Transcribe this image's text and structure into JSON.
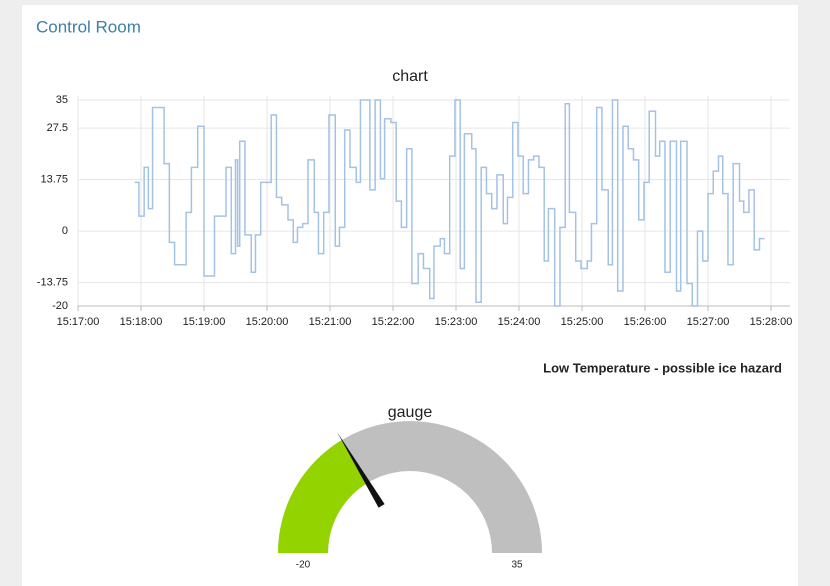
{
  "header": {
    "title": "Control Room"
  },
  "notice": "Low Temperature - possible ice hazard",
  "chart_data": [
    {
      "type": "line",
      "title": "chart",
      "step": "after",
      "color": "#a4c2e4",
      "grid": true,
      "x": [
        "15:17:54",
        "15:17:58",
        "15:18:03",
        "15:18:07",
        "15:18:11",
        "15:18:22",
        "15:18:27",
        "15:18:32",
        "15:18:43",
        "15:18:48",
        "15:18:54",
        "15:19:00",
        "15:19:10",
        "15:19:21",
        "15:19:26",
        "15:19:30",
        "15:19:32",
        "15:19:34",
        "15:19:39",
        "15:19:45",
        "15:19:49",
        "15:19:54",
        "15:20:04",
        "15:20:09",
        "15:20:14",
        "15:20:20",
        "15:20:25",
        "15:20:29",
        "15:20:34",
        "15:20:39",
        "15:20:45",
        "15:20:49",
        "15:20:54",
        "15:20:59",
        "15:21:05",
        "15:21:09",
        "15:21:14",
        "15:21:19",
        "15:21:25",
        "15:21:29",
        "15:21:38",
        "15:21:43",
        "15:21:48",
        "15:21:52",
        "15:21:58",
        "15:22:03",
        "15:22:08",
        "15:22:13",
        "15:22:18",
        "15:22:24",
        "15:22:29",
        "15:22:35",
        "15:22:39",
        "15:22:45",
        "15:22:49",
        "15:22:54",
        "15:22:59",
        "15:23:04",
        "15:23:08",
        "15:23:15",
        "15:23:19",
        "15:23:24",
        "15:23:29",
        "15:23:34",
        "15:23:39",
        "15:23:45",
        "15:23:49",
        "15:23:54",
        "15:23:59",
        "15:24:04",
        "15:24:09",
        "15:24:14",
        "15:24:19",
        "15:24:24",
        "15:24:28",
        "15:24:34",
        "15:24:39",
        "15:24:44",
        "15:24:48",
        "15:24:54",
        "15:24:59",
        "15:25:05",
        "15:25:09",
        "15:25:14",
        "15:25:19",
        "15:25:25",
        "15:25:29",
        "15:25:34",
        "15:25:39",
        "15:25:44",
        "15:25:49",
        "15:25:54",
        "15:25:59",
        "15:26:04",
        "15:26:10",
        "15:26:14",
        "15:26:19",
        "15:26:24",
        "15:26:30",
        "15:26:34",
        "15:26:40",
        "15:26:45",
        "15:26:50",
        "15:26:55",
        "15:27:00",
        "15:27:05",
        "15:27:10",
        "15:27:14",
        "15:27:19",
        "15:27:24",
        "15:27:30",
        "15:27:34",
        "15:27:39",
        "15:27:44",
        "15:27:49"
      ],
      "values": [
        13,
        4,
        17,
        6,
        33,
        18,
        -3,
        -9,
        5,
        17,
        28,
        -12,
        4,
        17,
        -6,
        19,
        -4,
        24,
        -1,
        -11,
        -1,
        13,
        31,
        9,
        7,
        3,
        -3,
        1,
        2,
        19,
        5,
        -6,
        5,
        31,
        -4,
        1,
        27,
        17,
        13,
        35,
        11,
        35,
        14,
        30,
        29,
        8,
        1,
        22,
        -14,
        -6,
        -10,
        -18,
        -4,
        -2,
        -6,
        20,
        35,
        -10,
        26,
        22,
        -19,
        17,
        10,
        6,
        15,
        2,
        9,
        29,
        20,
        10,
        19,
        20,
        17,
        -8,
        6,
        -20,
        1,
        34,
        5,
        -8,
        -10,
        -8,
        2,
        33,
        11,
        -9,
        35,
        -16,
        28,
        22,
        19,
        3,
        13,
        32,
        20,
        24,
        -11,
        24,
        -16,
        24,
        -14,
        -20,
        0,
        -8,
        10,
        16,
        20,
        10,
        -9,
        18,
        8,
        5,
        11,
        -5,
        -2
      ],
      "xlim": [
        "15:17:00",
        "15:28:00"
      ],
      "xticks": [
        "15:17:00",
        "15:18:00",
        "15:19:00",
        "15:20:00",
        "15:21:00",
        "15:22:00",
        "15:23:00",
        "15:24:00",
        "15:25:00",
        "15:26:00",
        "15:27:00",
        "15:28:00"
      ],
      "ylim": [
        -20,
        35
      ],
      "yticks": [
        -20,
        -13.75,
        0,
        13.75,
        27.5,
        35
      ]
    },
    {
      "type": "gauge",
      "title": "gauge",
      "value": -2,
      "ylim": [
        -20,
        35
      ],
      "color": "#93d300",
      "track_color": "#bfbfbf",
      "needle_color": "#111111"
    }
  ]
}
